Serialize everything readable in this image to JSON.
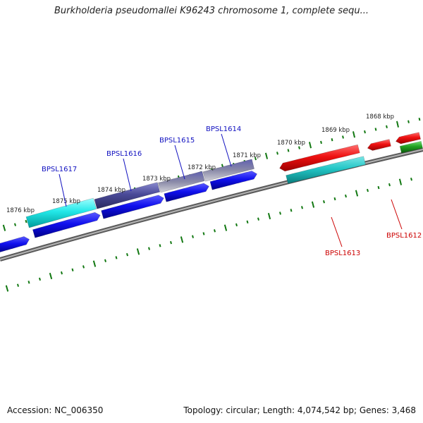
{
  "title": "Burkholderia pseudomallei K96243 chromosome 1, complete sequ...",
  "footer": {
    "accession": "Accession: NC_006350",
    "summary": "Topology: circular; Length: 4,074,542 bp; Genes: 3,468"
  },
  "colors": {
    "backbone": "#888888",
    "tick": "#127812",
    "label_forward": "#1010c0",
    "label_reverse": "#cc0000"
  },
  "kbp_labels": [
    "1876 kbp",
    "1875 kbp",
    "1874 kbp",
    "1873 kbp",
    "1872 kbp",
    "1871 kbp",
    "1870 kbp",
    "1869 kbp",
    "1868 kbp"
  ],
  "gene_labels": [
    {
      "text": "BPSL1617",
      "strand": "forward"
    },
    {
      "text": "BPSL1616",
      "strand": "forward"
    },
    {
      "text": "BPSL1615",
      "strand": "forward"
    },
    {
      "text": "BPSL1614",
      "strand": "forward"
    },
    {
      "text": "BPSL1613",
      "strand": "reverse"
    },
    {
      "text": "BPSL1612",
      "strand": "reverse"
    }
  ]
}
